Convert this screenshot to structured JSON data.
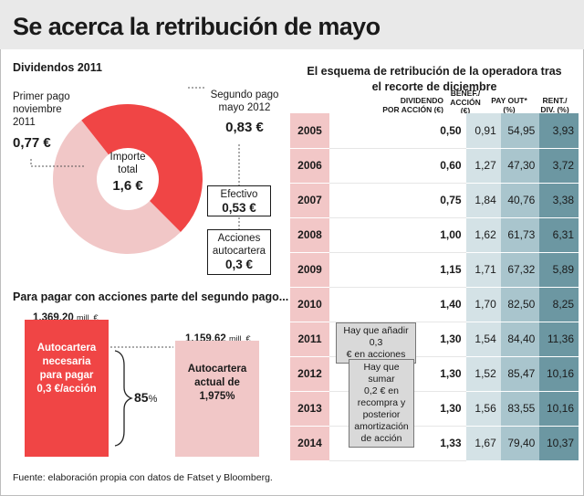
{
  "title": "Se acerca la retribución de mayo",
  "dividends": {
    "heading": "Dividendos 2011",
    "first_label_1": "Primer pago",
    "first_label_2": "noviembre",
    "first_label_3": "2011",
    "first_value": "0,77 €",
    "second_label_1": "Segundo pago",
    "second_label_2": "mayo 2012",
    "second_value": "0,83 €",
    "center_label_1": "Importe",
    "center_label_2": "total",
    "center_value": "1,6 €",
    "cash_label": "Efectivo",
    "cash_value": "0,53 €",
    "shares_label_1": "Acciones",
    "shares_label_2": "autocartera",
    "shares_value": "0,3 €"
  },
  "shares": {
    "heading": "Para pagar con acciones parte del segundo pago...",
    "bar1_value": "1.369,20",
    "bar1_unit": "mill. €",
    "bar1_text_1": "Autocartera",
    "bar1_text_2": "necesaria",
    "bar1_text_3": "para pagar",
    "bar1_text_4": "0,3 €/acción",
    "bar2_value": "1.159,62",
    "bar2_unit": "mill. €",
    "bar2_text_1": "Autocartera",
    "bar2_text_2": "actual de",
    "bar2_text_3": "1,975%",
    "pct_number": "85",
    "pct_sign": "%"
  },
  "table": {
    "heading_1": "El esquema de retribución de la operadora tras",
    "heading_2": "el recorte de diciembre",
    "col_div_1": "DIVIDENDO",
    "col_div_2": "POR ACCIÓN (€)",
    "col_ben_1": "BENEF./",
    "col_ben_2": "ACCIÓN",
    "col_ben_3": "(€)",
    "col_pay_1": "PAY OUT*",
    "col_pay_2": "(%)",
    "col_rent_1": "RENT./",
    "col_rent_2": "DIV. (%)",
    "rows": [
      {
        "year": "2005",
        "div": "0,50",
        "ben": "0,91",
        "pay": "54,95",
        "rent": "3,93"
      },
      {
        "year": "2006",
        "div": "0,60",
        "ben": "1,27",
        "pay": "47,30",
        "rent": "3,72"
      },
      {
        "year": "2007",
        "div": "0,75",
        "ben": "1,84",
        "pay": "40,76",
        "rent": "3,38"
      },
      {
        "year": "2008",
        "div": "1,00",
        "ben": "1,62",
        "pay": "61,73",
        "rent": "6,31"
      },
      {
        "year": "2009",
        "div": "1,15",
        "ben": "1,71",
        "pay": "67,32",
        "rent": "5,89"
      },
      {
        "year": "2010",
        "div": "1,40",
        "ben": "1,70",
        "pay": "82,50",
        "rent": "8,25"
      },
      {
        "year": "2011",
        "div": "1,30",
        "ben": "1,54",
        "pay": "84,40",
        "rent": "11,36"
      },
      {
        "year": "2012",
        "div": "1,30",
        "ben": "1,52",
        "pay": "85,47",
        "rent": "10,16"
      },
      {
        "year": "2013",
        "div": "1,30",
        "ben": "1,56",
        "pay": "83,55",
        "rent": "10,16"
      },
      {
        "year": "2014",
        "div": "1,33",
        "ben": "1,67",
        "pay": "79,40",
        "rent": "10,37"
      }
    ],
    "note1_1": "Hay que añadir 0,3",
    "note1_2": "€ en acciones",
    "note2_1": "Hay que",
    "note2_2": "sumar",
    "note2_3": "0,2 € en",
    "note2_4": "recompra y",
    "note2_5": "posterior",
    "note2_6": "amortización",
    "note2_7": "de acción"
  },
  "source": "Fuente: elaboración propia con datos de Fatset y Bloomberg.",
  "colors": {
    "red": "#f04545",
    "pink": "#f1c7c7",
    "teal_light": "#d4e2e6",
    "teal_mid": "#a9c5cd",
    "teal_dark": "#6c97a2"
  },
  "chart_data": [
    {
      "type": "pie",
      "title": "Dividendos 2011",
      "labels": [
        "Primer pago noviembre 2011",
        "Segundo pago mayo 2012"
      ],
      "values": [
        0.77,
        0.83
      ],
      "total": 1.6
    },
    {
      "type": "bar",
      "title": "Para pagar con acciones parte del segundo pago...",
      "categories": [
        "Autocartera necesaria para pagar 0,3 €/acción",
        "Autocartera actual de 1,975%"
      ],
      "values": [
        1369.2,
        1159.62
      ],
      "unit": "mill. €",
      "ratio_percent": 85
    },
    {
      "type": "table",
      "title": "El esquema de retribución de la operadora tras el recorte de diciembre",
      "columns": [
        "DIVIDENDO POR ACCIÓN (€)",
        "BENEF./ACCIÓN (€)",
        "PAY OUT* (%)",
        "RENT./DIV. (%)"
      ],
      "rows": [
        "2005",
        "2006",
        "2007",
        "2008",
        "2009",
        "2010",
        "2011",
        "2012",
        "2013",
        "2014"
      ],
      "values": [
        [
          0.5,
          0.91,
          54.95,
          3.93
        ],
        [
          0.6,
          1.27,
          47.3,
          3.72
        ],
        [
          0.75,
          1.84,
          40.76,
          3.38
        ],
        [
          1.0,
          1.62,
          61.73,
          6.31
        ],
        [
          1.15,
          1.71,
          67.32,
          5.89
        ],
        [
          1.4,
          1.7,
          82.5,
          8.25
        ],
        [
          1.3,
          1.54,
          84.4,
          11.36
        ],
        [
          1.3,
          1.52,
          85.47,
          10.16
        ],
        [
          1.3,
          1.56,
          83.55,
          10.16
        ],
        [
          1.33,
          1.67,
          79.4,
          10.37
        ]
      ]
    }
  ]
}
